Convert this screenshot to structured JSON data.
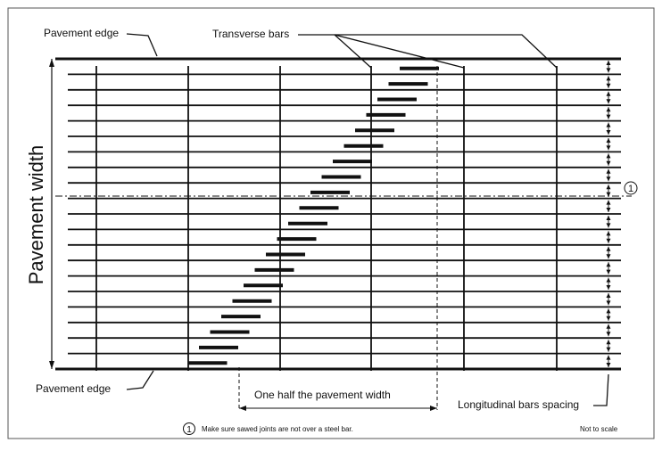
{
  "diagram": {
    "labels": {
      "pavement_edge_top": "Pavement edge",
      "transverse_bars": "Transverse bars",
      "pavement_width": "Pavement width",
      "pavement_edge_bottom": "Pavement edge",
      "one_half": "One half the pavement width",
      "longitudinal_spacing": "Longitudinal bars spacing",
      "note_number": "1",
      "note_text": "Make sure sawed joints are not over a steel bar.",
      "not_to_scale": "Not to scale"
    },
    "colors": {
      "line": "#111111",
      "background": "#ffffff",
      "border": "#555555"
    },
    "icons": [
      "circled-one-icon",
      "arrow-icon"
    ]
  }
}
